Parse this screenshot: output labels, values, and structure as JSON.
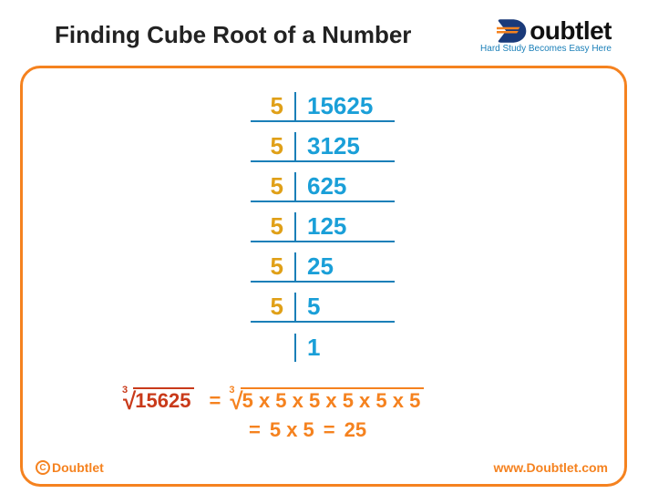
{
  "title": "Finding Cube Root of a Number",
  "logo": {
    "text": "oubtlet",
    "tagline": "Hard Study Becomes Easy Here"
  },
  "colors": {
    "frame": "#f5821f",
    "divisor": "#e0a018",
    "quotient": "#1a9fd8",
    "line": "#1a7fb8",
    "eq_left": "#c93a1a",
    "eq_right": "#f5821f"
  },
  "division": {
    "rows": [
      {
        "left": "5",
        "right": "15625"
      },
      {
        "left": "5",
        "right": "3125"
      },
      {
        "left": "5",
        "right": "625"
      },
      {
        "left": "5",
        "right": "125"
      },
      {
        "left": "5",
        "right": "25"
      },
      {
        "left": "5",
        "right": "5"
      },
      {
        "left": "",
        "right": "1"
      }
    ]
  },
  "equation": {
    "root_index": "3",
    "left_radicand": "15625",
    "right_radicand": "5 x 5 x 5 x 5 x 5 x 5",
    "step2_a": "5 x 5",
    "step2_b": "25",
    "eq": "="
  },
  "footer": {
    "copyright": "Doubtlet",
    "website": "www.Doubtlet.com"
  }
}
